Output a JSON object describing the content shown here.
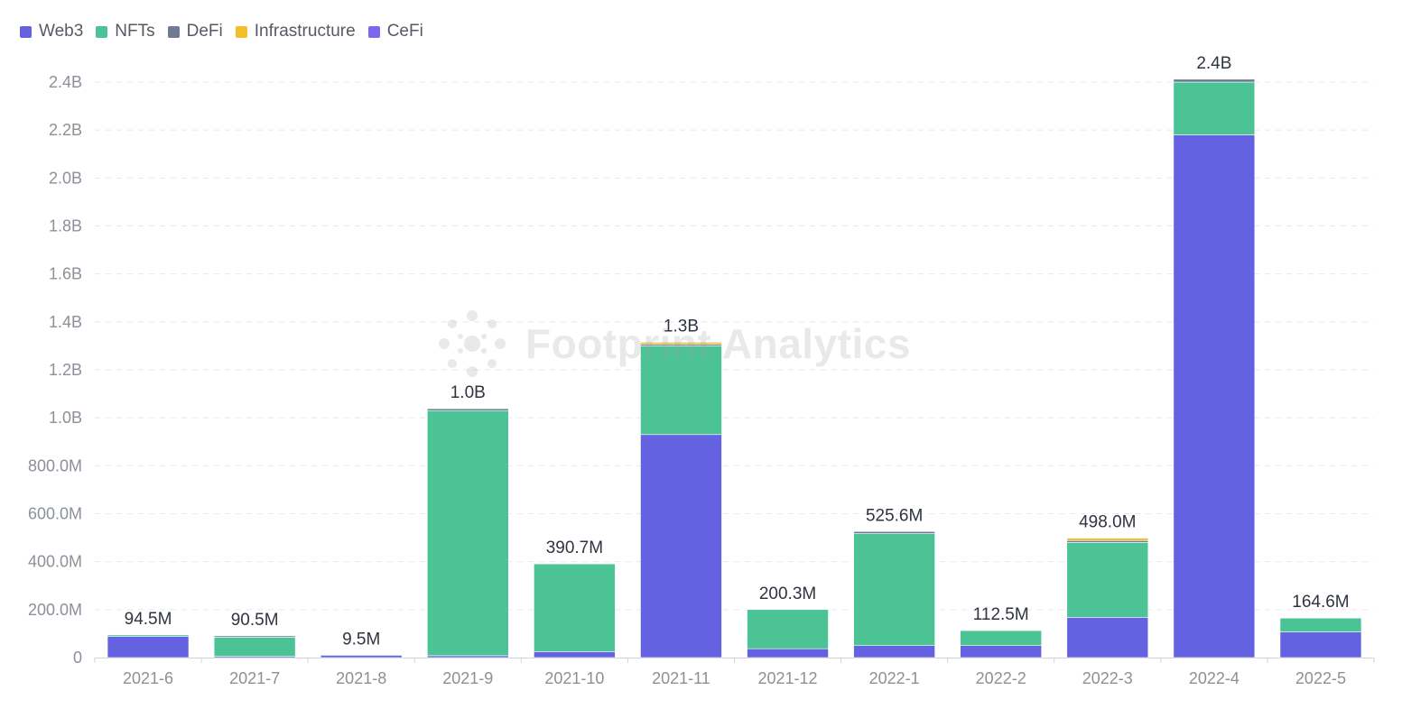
{
  "chart_data": {
    "type": "bar",
    "stacked": true,
    "title": "",
    "xlabel": "",
    "ylabel": "",
    "ylim": [
      0,
      2400000000
    ],
    "grid": true,
    "legend_position": "top-left",
    "categories": [
      "2021-6",
      "2021-7",
      "2021-8",
      "2021-9",
      "2021-10",
      "2021-11",
      "2021-12",
      "2022-1",
      "2022-2",
      "2022-3",
      "2022-4",
      "2022-5"
    ],
    "y_ticks": [
      {
        "value": 0,
        "label": "0"
      },
      {
        "value": 200000000,
        "label": "200.0M"
      },
      {
        "value": 400000000,
        "label": "400.0M"
      },
      {
        "value": 600000000,
        "label": "600.0M"
      },
      {
        "value": 800000000,
        "label": "800.0M"
      },
      {
        "value": 1000000000,
        "label": "1.0B"
      },
      {
        "value": 1200000000,
        "label": "1.2B"
      },
      {
        "value": 1400000000,
        "label": "1.4B"
      },
      {
        "value": 1600000000,
        "label": "1.6B"
      },
      {
        "value": 1800000000,
        "label": "1.8B"
      },
      {
        "value": 2000000000,
        "label": "2.0B"
      },
      {
        "value": 2200000000,
        "label": "2.2B"
      },
      {
        "value": 2400000000,
        "label": "2.4B"
      }
    ],
    "series": [
      {
        "name": "Web3",
        "color": "#6462e0",
        "values": [
          88000000,
          5000000,
          9500000,
          8000000,
          25000000,
          930000000,
          37000000,
          50000000,
          50000000,
          168000000,
          2180000000,
          107000000
        ]
      },
      {
        "name": "NFTs",
        "color": "#4bc395",
        "values": [
          6500000,
          80000000,
          0,
          1022000000,
          365700000,
          370000000,
          163300000,
          467000000,
          62500000,
          312000000,
          220000000,
          57600000
        ]
      },
      {
        "name": "DeFi",
        "color": "#6d7b95",
        "values": [
          0,
          5500000,
          0,
          8000000,
          0,
          7000000,
          0,
          8600000,
          0,
          8000000,
          12000000,
          0
        ]
      },
      {
        "name": "Infrastructure",
        "color": "#f4bf2a",
        "values": [
          0,
          0,
          0,
          0,
          0,
          8000000,
          0,
          0,
          0,
          10000000,
          0,
          0
        ]
      },
      {
        "name": "CeFi",
        "color": "#7b68ee",
        "values": [
          0,
          0,
          0,
          0,
          0,
          0,
          0,
          0,
          0,
          0,
          0,
          0
        ]
      }
    ],
    "totals": [
      94500000,
      90500000,
      9500000,
      1038000000,
      390700000,
      1315000000,
      200300000,
      525600000,
      112500000,
      498000000,
      2412000000,
      164600000
    ],
    "total_labels": [
      "94.5M",
      "90.5M",
      "9.5M",
      "1.0B",
      "390.7M",
      "1.3B",
      "200.3M",
      "525.6M",
      "112.5M",
      "498.0M",
      "2.4B",
      "164.6M"
    ]
  },
  "watermark": {
    "text": "Footprint Analytics",
    "icon": "footprint-logo-icon"
  },
  "colors": {
    "grid": "#e6e8eb",
    "axis": "#d0d3d8",
    "tick_text": "#8b9099",
    "label_text": "#2f3440"
  }
}
